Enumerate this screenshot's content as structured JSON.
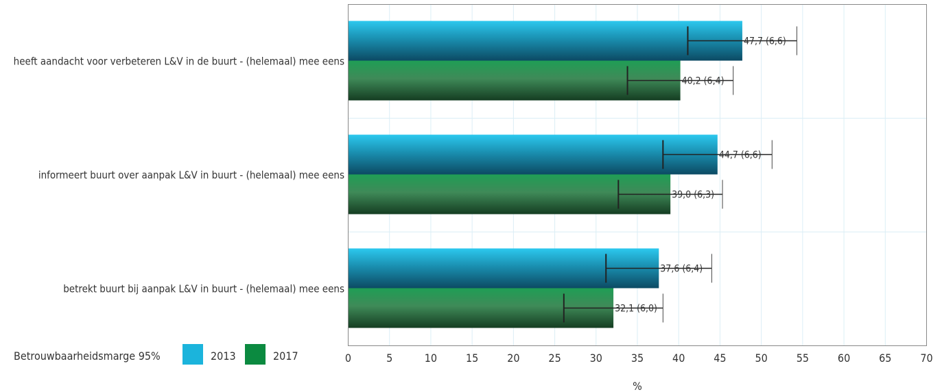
{
  "chart_data": {
    "type": "bar",
    "orientation": "horizontal",
    "categories": [
      "heeft aandacht voor verbeteren L&V in de buurt - (helemaal) mee eens",
      "informeert buurt over aanpak L&V in buurt - (helemaal) mee eens",
      "betrekt buurt bij aanpak L&V in buurt - (helemaal) mee eens"
    ],
    "series": [
      {
        "name": "2013",
        "color": "#1bb4dc",
        "values": [
          47.7,
          44.7,
          37.6
        ],
        "margins": [
          6.6,
          6.6,
          6.4
        ],
        "labels": [
          "47,7 (6,6)",
          "44,7 (6,6)",
          "37,6 (6,4)"
        ]
      },
      {
        "name": "2017",
        "color": "#0b8a40",
        "values": [
          40.2,
          39.0,
          32.1
        ],
        "margins": [
          6.4,
          6.3,
          6.0
        ],
        "labels": [
          "40,2 (6,4)",
          "39,0 (6,3)",
          "32,1 (6,0)"
        ]
      }
    ],
    "xlabel": "%",
    "xlim": [
      0,
      70
    ],
    "xticks": [
      0,
      5,
      10,
      15,
      20,
      25,
      30,
      35,
      40,
      45,
      50,
      55,
      60,
      65,
      70
    ],
    "grid": true,
    "legend": {
      "title": "Betrouwbaarheidsmarge 95%",
      "position": "bottom-left"
    }
  }
}
